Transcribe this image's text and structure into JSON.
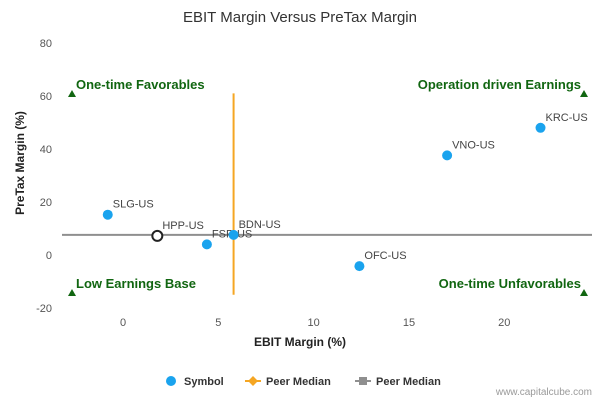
{
  "chart_data": {
    "type": "scatter",
    "title": "EBIT Margin Versus PreTax Margin",
    "xlabel": "EBIT Margin (%)",
    "ylabel": "PreTax Margin (%)",
    "xlim": [
      -3.2,
      24.6
    ],
    "ylim": [
      -20,
      80
    ],
    "xticks": [
      0,
      5,
      10,
      15,
      20
    ],
    "yticks": [
      -20,
      0,
      20,
      40,
      60,
      80
    ],
    "grid": false,
    "points": [
      {
        "label": "SLG-US",
        "x": -0.8,
        "y": 15.2,
        "color": "#1aa3ee",
        "hollow": false
      },
      {
        "label": "HPP-US",
        "x": 1.8,
        "y": 7.2,
        "color": "#222222",
        "hollow": true
      },
      {
        "label": "FSP-US",
        "x": 4.4,
        "y": 4.0,
        "color": "#1aa3ee",
        "hollow": false
      },
      {
        "label": "BDN-US",
        "x": 5.8,
        "y": 7.6,
        "color": "#1aa3ee",
        "hollow": false
      },
      {
        "label": "OFC-US",
        "x": 12.4,
        "y": -4.2,
        "color": "#1aa3ee",
        "hollow": false
      },
      {
        "label": "VNO-US",
        "x": 17.0,
        "y": 37.6,
        "color": "#1aa3ee",
        "hollow": false
      },
      {
        "label": "KRC-US",
        "x": 21.9,
        "y": 48.0,
        "color": "#1aa3ee",
        "hollow": false
      }
    ],
    "peer_median_x": 5.8,
    "peer_median_x_range": [
      -15,
      61
    ],
    "peer_median_y": 7.6,
    "quadrants": {
      "top_left": "One-time Favorables",
      "top_right": "Operation driven Earnings",
      "bottom_left": "Low Earnings Base",
      "bottom_right": "One-time Unfavorables"
    },
    "legend": {
      "placement": "bottom",
      "items": [
        {
          "label": "Symbol",
          "kind": "dot",
          "color": "#1aa3ee"
        },
        {
          "label": "Peer Median",
          "kind": "line-diamond",
          "color": "#f5a623"
        },
        {
          "label": "Peer Median",
          "kind": "line-square",
          "color": "#8f8f8f"
        }
      ]
    },
    "colors": {
      "quadrant_marker": "#116611",
      "vertical_median": "#f5a623",
      "horizontal_median": "#8f8f8f"
    }
  },
  "credit": "www.capitalcube.com"
}
